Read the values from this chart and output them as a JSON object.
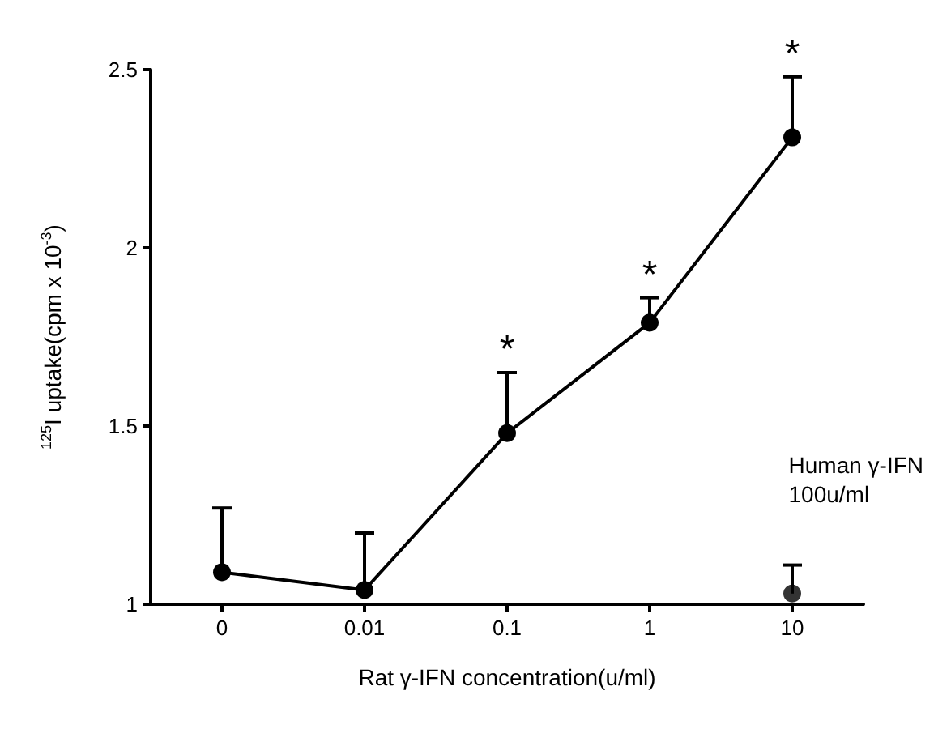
{
  "chart_data": {
    "type": "line",
    "xlabel": "Rat γ-IFN concentration(u/ml)",
    "ylabel": "$^{125}$I uptake(cpm x 10$^{-3}$)",
    "categories": [
      "0",
      "0.01",
      "0.1",
      "1",
      "10"
    ],
    "series": [
      {
        "color": "#000000",
        "values": [
          1.09,
          1.04,
          1.48,
          1.79,
          2.31
        ],
        "errors": [
          [
            1.09,
            1.27
          ],
          [
            1.04,
            1.2
          ],
          [
            1.48,
            1.65
          ],
          [
            1.79,
            1.86
          ],
          [
            2.31,
            2.48
          ]
        ]
      },
      {
        "type": "scatter",
        "color": "#000000",
        "x": [
          "10"
        ],
        "values": [
          1.03
        ],
        "errors": [
          [
            1.03,
            1.11
          ]
        ]
      }
    ],
    "ylim": [
      1,
      2.5
    ],
    "yticks": [
      1,
      1.5,
      2,
      2.5
    ],
    "grid": false,
    "marker": "circle",
    "line_style": "solid",
    "annotations": [
      {
        "text": "*",
        "x": "0.1",
        "y": 1.65
      },
      {
        "text": "*",
        "x": "1",
        "y": 1.86
      },
      {
        "text": "*",
        "x": "10",
        "y": 2.48
      },
      "Human γ-IFN\n100u/ml"
    ]
  }
}
